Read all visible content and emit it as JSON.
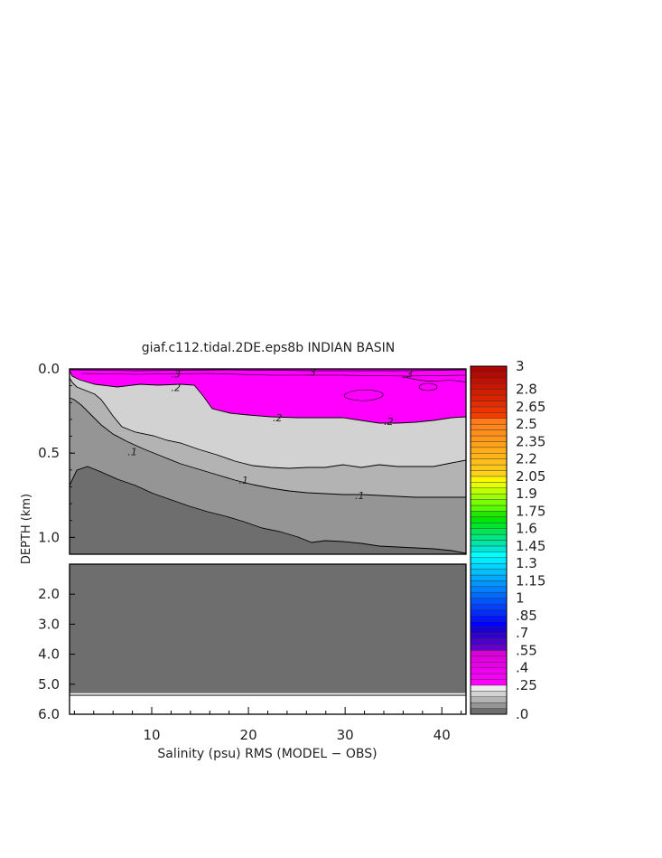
{
  "chart_data": {
    "type": "contour",
    "title": "giaf.c112.tidal.2DE.eps8b INDIAN BASIN",
    "xlabel": "Salinity (psu) RMS (MODEL − OBS)",
    "ylabel": "DEPTH (km)",
    "xlim": [
      1.5,
      42.5
    ],
    "x_ticks": [
      10,
      20,
      30,
      40
    ],
    "upper_panel": {
      "ylim": [
        0.0,
        1.1
      ],
      "y_ticks": [
        "0.0",
        "0.5",
        "1.0"
      ],
      "y_tick_values": [
        0.0,
        0.5,
        1.0
      ]
    },
    "lower_panel": {
      "ylim": [
        1.0,
        6.0
      ],
      "y_ticks": [
        "2.0",
        "3.0",
        "4.0",
        "5.0",
        "6.0"
      ],
      "y_tick_values": [
        2.0,
        3.0,
        4.0,
        5.0,
        6.0
      ],
      "bottom_depth_km": 5.3
    },
    "contour_labels": [
      {
        "text": ".3",
        "x": 12.5,
        "depth": 0.03
      },
      {
        "text": ".3",
        "x": 26.5,
        "depth": 0.02
      },
      {
        "text": ".3",
        "x": 36.5,
        "depth": 0.03
      },
      {
        "text": ".2",
        "x": 12.5,
        "depth": 0.11
      },
      {
        "text": ".2",
        "x": 23.0,
        "depth": 0.29
      },
      {
        "text": ".2",
        "x": 34.5,
        "depth": 0.31
      },
      {
        "text": ".1",
        "x": 8.0,
        "depth": 0.49
      },
      {
        "text": ".1",
        "x": 19.5,
        "depth": 0.66
      },
      {
        "text": ".1",
        "x": 31.5,
        "depth": 0.75
      }
    ],
    "colorbar": {
      "labels": [
        "3",
        "2.8",
        "2.65",
        "2.5",
        "2.35",
        "2.2",
        "2.05",
        "1.9",
        "1.75",
        "1.6",
        "1.45",
        "1.3",
        "1.15",
        "1",
        ".85",
        ".7",
        ".55",
        ".4",
        ".25",
        ".0"
      ],
      "label_values": [
        3.0,
        2.8,
        2.65,
        2.5,
        2.35,
        2.2,
        2.05,
        1.9,
        1.75,
        1.6,
        1.45,
        1.3,
        1.15,
        1.0,
        0.85,
        0.7,
        0.55,
        0.4,
        0.25,
        0.0
      ],
      "min": 0.0,
      "max": 3.0,
      "step": 0.05
    },
    "fill_colors": {
      "level_0": "#6e6e6e",
      "level_1": "#959595",
      "level_2": "#b3b3b3",
      "level_3": "#d2d2d2",
      "level_4": "#ff00ff",
      "land": "#6e6e6e"
    }
  }
}
